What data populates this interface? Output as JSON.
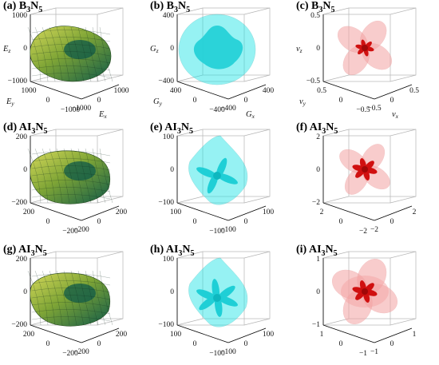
{
  "panels": [
    {
      "id": "a",
      "label": {
        "prefix": "(a) ",
        "el1": "B",
        "n1": "3",
        "el2": "N",
        "n2": "5"
      },
      "property": "E",
      "axes": {
        "z": "E",
        "zsub": "z",
        "y": "E",
        "ysub": "y",
        "x": "E",
        "xsub": "x"
      },
      "ticks": {
        "z": [
          "1000",
          "0",
          "−1000"
        ],
        "y": [
          "1000",
          "0",
          "−1000"
        ],
        "x": [
          "−1000",
          "0",
          "1000"
        ]
      }
    },
    {
      "id": "b",
      "label": {
        "prefix": "(b) ",
        "el1": "B",
        "n1": "3",
        "el2": "N",
        "n2": "5"
      },
      "property": "G",
      "axes": {
        "z": "G",
        "zsub": "z",
        "y": "G",
        "ysub": "y",
        "x": "G",
        "xsub": "x"
      },
      "ticks": {
        "z": [
          "400",
          "0",
          "−400"
        ],
        "y": [
          "400",
          "0",
          "−400"
        ],
        "x": [
          "−400",
          "0",
          "400"
        ]
      }
    },
    {
      "id": "c",
      "label": {
        "prefix": "(c) ",
        "el1": "B",
        "n1": "3",
        "el2": "N",
        "n2": "5"
      },
      "property": "v",
      "axes": {
        "z": "v",
        "zsub": "z",
        "y": "v",
        "ysub": "y",
        "x": "v",
        "xsub": "x"
      },
      "ticks": {
        "z": [
          "0.5",
          "0",
          "−0.5"
        ],
        "y": [
          "0.5",
          "0",
          "−0.5"
        ],
        "x": [
          "−0.5",
          "0",
          "0.5"
        ]
      }
    },
    {
      "id": "d",
      "label": {
        "prefix": "(d) ",
        "el1": "AI",
        "n1": "3",
        "el2": "N",
        "n2": "5"
      },
      "property": "E",
      "axes": {},
      "ticks": {
        "z": [
          "200",
          "0",
          "−200"
        ],
        "y": [
          "200",
          "0",
          "−200"
        ],
        "x": [
          "−200",
          "0",
          "200"
        ]
      }
    },
    {
      "id": "e",
      "label": {
        "prefix": "(e) ",
        "el1": "AI",
        "n1": "3",
        "el2": "N",
        "n2": "5"
      },
      "property": "G",
      "axes": {},
      "ticks": {
        "z": [
          "100",
          "0",
          "−100"
        ],
        "y": [
          "100",
          "0",
          "−100"
        ],
        "x": [
          "−100",
          "0",
          "100"
        ]
      }
    },
    {
      "id": "f",
      "label": {
        "prefix": "(f) ",
        "el1": "AI",
        "n1": "3",
        "el2": "N",
        "n2": "5"
      },
      "property": "v",
      "axes": {},
      "ticks": {
        "z": [
          "2",
          "0",
          "−2"
        ],
        "y": [
          "2",
          "0",
          "−2"
        ],
        "x": [
          "−2",
          "0",
          "2"
        ]
      }
    },
    {
      "id": "g",
      "label": {
        "prefix": "(g) ",
        "el1": "AI",
        "n1": "3",
        "el2": "N",
        "n2": "5"
      },
      "property": "E",
      "axes": {},
      "ticks": {
        "z": [
          "200",
          "0",
          "−200"
        ],
        "y": [
          "200",
          "0",
          "−200"
        ],
        "x": [
          "−200",
          "0",
          "200"
        ]
      }
    },
    {
      "id": "h",
      "label": {
        "prefix": "(h) ",
        "el1": "AI",
        "n1": "3",
        "el2": "N",
        "n2": "5"
      },
      "property": "G",
      "axes": {},
      "ticks": {
        "z": [
          "100",
          "0",
          "−100"
        ],
        "y": [
          "100",
          "0",
          "−100"
        ],
        "x": [
          "−100",
          "0",
          "100"
        ]
      }
    },
    {
      "id": "i",
      "label": {
        "prefix": "(i) ",
        "el1": "AI",
        "n1": "3",
        "el2": "N",
        "n2": "5"
      },
      "property": "v",
      "axes": {},
      "ticks": {
        "z": [
          "1",
          "0",
          "−1"
        ],
        "y": [
          "1",
          "0",
          "−1"
        ],
        "x": [
          "−1",
          "0",
          "1"
        ]
      }
    }
  ],
  "colors": {
    "young_modulus": "#7fa536",
    "young_modulus_dark": "#0f5a48",
    "young_modulus_light": "#d6d95a",
    "shear_modulus": "#19e3e6",
    "shear_modulus_inner": "#1fcfd6",
    "poisson_outer": "#f3a3a3",
    "poisson_inner": "#d01010"
  }
}
